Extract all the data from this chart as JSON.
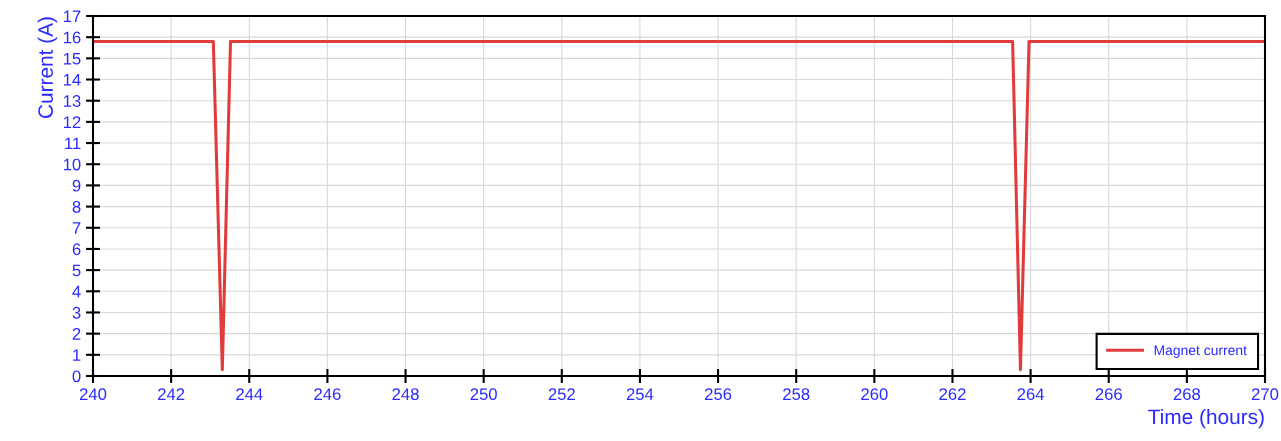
{
  "chart_data": {
    "type": "line",
    "xlabel": "Time (hours)",
    "ylabel": "Current (A)",
    "xlim": [
      240,
      270
    ],
    "xticks": [
      240,
      242,
      244,
      246,
      248,
      250,
      252,
      254,
      256,
      258,
      260,
      262,
      264,
      266,
      268,
      270
    ],
    "ylim": [
      0,
      17
    ],
    "yticks": [
      0,
      1,
      2,
      3,
      4,
      5,
      6,
      7,
      8,
      9,
      10,
      11,
      12,
      13,
      14,
      15,
      16,
      17
    ],
    "grid": true,
    "legend": "bottom right",
    "marker": "none",
    "line_style": "solid",
    "series": [
      {
        "name": "Magnet current",
        "color": "#e03c3c",
        "x": [
          240,
          243.08,
          243.31,
          243.52,
          263.54,
          263.74,
          263.96,
          270
        ],
        "values": [
          15.8,
          15.8,
          0.3,
          15.8,
          15.8,
          0.3,
          15.8,
          15.8
        ]
      }
    ]
  }
}
